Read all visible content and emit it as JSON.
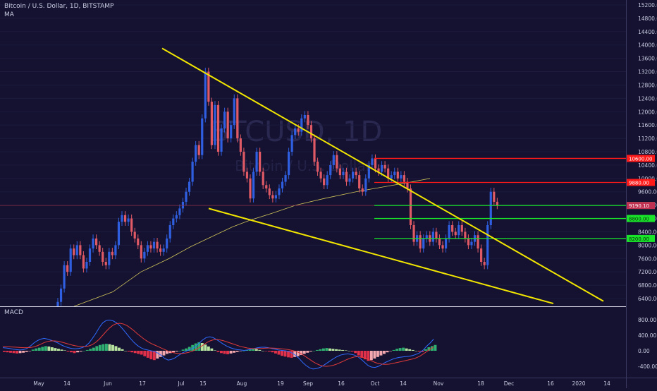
{
  "header": {
    "symbol_line": "Bitcoin / U.S. Dollar, 1D, BITSTAMP",
    "indicator": "MA",
    "watermark_symbol": "BTCUSD, 1D",
    "watermark_name": "Bitcoin / U.S. Dollar"
  },
  "macd_panel": {
    "label": "MACD"
  },
  "colors": {
    "background": "#141230",
    "up": "#2f5fe0",
    "down": "#e05a66",
    "trendline": "#f2e600",
    "resistance": "#ff1a1a",
    "support": "#19e62b",
    "ma": "#cfc25a",
    "macd_line": "#2f6bff",
    "signal_line": "#e03a3a"
  },
  "chart_data": [
    {
      "type": "candlestick",
      "title": "Bitcoin / U.S. Dollar, 1D, BITSTAMP",
      "x_ticks": [
        "May",
        "14",
        "Jun",
        "17",
        "Jul",
        "15",
        "Aug",
        "19",
        "Sep",
        "16",
        "Oct",
        "14",
        "Nov",
        "18",
        "Dec",
        "16",
        "2020",
        "14"
      ],
      "y_ticks": [
        "6400.00",
        "6800.00",
        "7200.00",
        "7600.00",
        "8000.00",
        "8400.00",
        "8800.00",
        "9200.00",
        "9600.00",
        "10000.00",
        "10400.00",
        "10800.00",
        "11200.00",
        "11600.00",
        "12000.00",
        "12400.00",
        "12800.00",
        "13200.00",
        "13600.00",
        "14000.00",
        "14400.00",
        "14800.00",
        "15200.00"
      ],
      "ylim": [
        6150,
        15400
      ],
      "price_levels": [
        {
          "label": "10600.00",
          "value": 10600,
          "kind": "resistance"
        },
        {
          "label": "9880.00",
          "value": 9880,
          "kind": "resistance"
        },
        {
          "label": "9190.00",
          "value": 9190,
          "kind": "support"
        },
        {
          "label": "8800.00",
          "value": 8800,
          "kind": "support"
        },
        {
          "label": "8200.00",
          "value": 8200,
          "kind": "support"
        }
      ],
      "current_price": {
        "label": "9190.10",
        "value": 9190.1
      },
      "trendlines": [
        {
          "from": [
            0,
            13900
          ],
          "to": [
            1,
            6320
          ]
        },
        {
          "from": [
            0,
            9100
          ],
          "to": [
            1,
            6250
          ]
        }
      ],
      "series": [
        {
          "o": 6100,
          "c": 6300
        },
        {
          "o": 6300,
          "c": 6700
        },
        {
          "o": 6700,
          "c": 7400
        },
        {
          "o": 7400,
          "c": 7200
        },
        {
          "o": 7200,
          "c": 7900
        },
        {
          "o": 7900,
          "c": 7700
        },
        {
          "o": 7700,
          "c": 8000
        },
        {
          "o": 8000,
          "c": 7700
        },
        {
          "o": 7700,
          "c": 7300
        },
        {
          "o": 7300,
          "c": 7500
        },
        {
          "o": 7500,
          "c": 7900
        },
        {
          "o": 7900,
          "c": 8200
        },
        {
          "o": 8200,
          "c": 8000
        },
        {
          "o": 8000,
          "c": 7800
        },
        {
          "o": 7800,
          "c": 7500
        },
        {
          "o": 7500,
          "c": 7400
        },
        {
          "o": 7400,
          "c": 7800
        },
        {
          "o": 7800,
          "c": 7700
        },
        {
          "o": 7700,
          "c": 8000
        },
        {
          "o": 8000,
          "c": 8700
        },
        {
          "o": 8700,
          "c": 8900
        },
        {
          "o": 8900,
          "c": 8700
        },
        {
          "o": 8700,
          "c": 8800
        },
        {
          "o": 8800,
          "c": 8400
        },
        {
          "o": 8400,
          "c": 8200
        },
        {
          "o": 8200,
          "c": 8000
        },
        {
          "o": 8000,
          "c": 7600
        },
        {
          "o": 7600,
          "c": 7800
        },
        {
          "o": 7800,
          "c": 8000
        },
        {
          "o": 8000,
          "c": 7900
        },
        {
          "o": 7900,
          "c": 8100
        },
        {
          "o": 8100,
          "c": 7900
        },
        {
          "o": 7900,
          "c": 7800
        },
        {
          "o": 7800,
          "c": 7900
        },
        {
          "o": 7900,
          "c": 8200
        },
        {
          "o": 8200,
          "c": 8600
        },
        {
          "o": 8600,
          "c": 8800
        },
        {
          "o": 8800,
          "c": 8900
        },
        {
          "o": 8900,
          "c": 9100
        },
        {
          "o": 9100,
          "c": 9300
        },
        {
          "o": 9300,
          "c": 9600
        },
        {
          "o": 9600,
          "c": 9900
        },
        {
          "o": 9900,
          "c": 10500
        },
        {
          "o": 10500,
          "c": 11000
        },
        {
          "o": 11000,
          "c": 10700
        },
        {
          "o": 10700,
          "c": 11800
        },
        {
          "o": 11800,
          "c": 13200
        },
        {
          "o": 13200,
          "c": 12300
        },
        {
          "o": 12300,
          "c": 11000
        },
        {
          "o": 11000,
          "c": 12200
        },
        {
          "o": 12200,
          "c": 10800
        },
        {
          "o": 10800,
          "c": 11500
        },
        {
          "o": 11500,
          "c": 12000
        },
        {
          "o": 12000,
          "c": 11200
        },
        {
          "o": 11200,
          "c": 11600
        },
        {
          "o": 11600,
          "c": 12400
        },
        {
          "o": 12400,
          "c": 11200
        },
        {
          "o": 11200,
          "c": 10800
        },
        {
          "o": 10800,
          "c": 10200
        },
        {
          "o": 10200,
          "c": 10000
        },
        {
          "o": 10000,
          "c": 9400
        },
        {
          "o": 9400,
          "c": 10200
        },
        {
          "o": 10200,
          "c": 10800
        },
        {
          "o": 10800,
          "c": 10200
        },
        {
          "o": 10200,
          "c": 9800
        },
        {
          "o": 9800,
          "c": 9700
        },
        {
          "o": 9700,
          "c": 9500
        },
        {
          "o": 9500,
          "c": 9400
        },
        {
          "o": 9400,
          "c": 9500
        },
        {
          "o": 9500,
          "c": 9700
        },
        {
          "o": 9700,
          "c": 9900
        },
        {
          "o": 9900,
          "c": 10100
        },
        {
          "o": 10100,
          "c": 10800
        },
        {
          "o": 10800,
          "c": 11300
        },
        {
          "o": 11300,
          "c": 11500
        },
        {
          "o": 11500,
          "c": 11400
        },
        {
          "o": 11400,
          "c": 11800
        },
        {
          "o": 11800,
          "c": 11900
        },
        {
          "o": 11900,
          "c": 11600
        },
        {
          "o": 11600,
          "c": 11200
        },
        {
          "o": 11200,
          "c": 10500
        },
        {
          "o": 10500,
          "c": 10200
        },
        {
          "o": 10200,
          "c": 10000
        },
        {
          "o": 10000,
          "c": 9800
        },
        {
          "o": 9800,
          "c": 10100
        },
        {
          "o": 10100,
          "c": 10400
        },
        {
          "o": 10400,
          "c": 10700
        },
        {
          "o": 10700,
          "c": 10300
        },
        {
          "o": 10300,
          "c": 10100
        },
        {
          "o": 10100,
          "c": 10200
        },
        {
          "o": 10200,
          "c": 9900
        },
        {
          "o": 9900,
          "c": 10000
        },
        {
          "o": 10000,
          "c": 10200
        },
        {
          "o": 10200,
          "c": 10100
        },
        {
          "o": 10100,
          "c": 9700
        },
        {
          "o": 9700,
          "c": 9600
        },
        {
          "o": 9600,
          "c": 10000
        },
        {
          "o": 10000,
          "c": 10400
        },
        {
          "o": 10400,
          "c": 10600
        },
        {
          "o": 10600,
          "c": 10300
        },
        {
          "o": 10300,
          "c": 10200
        },
        {
          "o": 10200,
          "c": 10400
        },
        {
          "o": 10400,
          "c": 10300
        },
        {
          "o": 10300,
          "c": 10000
        },
        {
          "o": 10000,
          "c": 10100
        },
        {
          "o": 10100,
          "c": 10200
        },
        {
          "o": 10200,
          "c": 10000
        },
        {
          "o": 10000,
          "c": 10100
        },
        {
          "o": 10100,
          "c": 9900
        },
        {
          "o": 9900,
          "c": 9700
        },
        {
          "o": 9700,
          "c": 8600
        },
        {
          "o": 8600,
          "c": 8100
        },
        {
          "o": 8100,
          "c": 8300
        },
        {
          "o": 8300,
          "c": 7900
        },
        {
          "o": 7900,
          "c": 8200
        },
        {
          "o": 8200,
          "c": 8300
        },
        {
          "o": 8300,
          "c": 8100
        },
        {
          "o": 8100,
          "c": 8400
        },
        {
          "o": 8400,
          "c": 8200
        },
        {
          "o": 8200,
          "c": 8000
        },
        {
          "o": 8000,
          "c": 7900
        },
        {
          "o": 7900,
          "c": 8200
        },
        {
          "o": 8200,
          "c": 8600
        },
        {
          "o": 8600,
          "c": 8400
        },
        {
          "o": 8400,
          "c": 8300
        },
        {
          "o": 8300,
          "c": 8600
        },
        {
          "o": 8600,
          "c": 8400
        },
        {
          "o": 8400,
          "c": 8200
        },
        {
          "o": 8200,
          "c": 8000
        },
        {
          "o": 8000,
          "c": 8100
        },
        {
          "o": 8100,
          "c": 8300
        },
        {
          "o": 8300,
          "c": 7900
        },
        {
          "o": 7900,
          "c": 7500
        },
        {
          "o": 7500,
          "c": 7400
        },
        {
          "o": 7400,
          "c": 8600
        },
        {
          "o": 8600,
          "c": 9600
        },
        {
          "o": 9600,
          "c": 9300
        },
        {
          "o": 9300,
          "c": 9200
        }
      ],
      "ma": [
        [
          105,
          6000
        ],
        [
          160,
          6600
        ],
        [
          200,
          7200
        ],
        [
          240,
          7600
        ],
        [
          270,
          7950
        ],
        [
          300,
          8250
        ],
        [
          330,
          8550
        ],
        [
          355,
          8750
        ],
        [
          385,
          8950
        ],
        [
          420,
          9200
        ],
        [
          460,
          9400
        ],
        [
          505,
          9600
        ],
        [
          545,
          9750
        ],
        [
          585,
          9900
        ],
        [
          610,
          10000
        ]
      ]
    },
    {
      "type": "macd",
      "title": "MACD",
      "y_ticks": [
        "800.00",
        "400.00",
        "0.00",
        "-400.00"
      ],
      "ylim": [
        -700,
        1100
      ],
      "histogram": [
        -30,
        -40,
        -50,
        -60,
        -70,
        -60,
        -50,
        -30,
        -10,
        30,
        60,
        80,
        100,
        120,
        110,
        90,
        70,
        50,
        30,
        10,
        -20,
        -40,
        -60,
        -40,
        -20,
        0,
        20,
        50,
        80,
        120,
        150,
        170,
        180,
        170,
        150,
        120,
        80,
        40,
        0,
        -20,
        -40,
        -60,
        -80,
        -100,
        -140,
        -180,
        -220,
        -240,
        -200,
        -160,
        -120,
        -80,
        -60,
        -40,
        -20,
        0,
        30,
        60,
        100,
        150,
        190,
        220,
        200,
        160,
        110,
        60,
        10,
        -30,
        -60,
        -80,
        -90,
        -70,
        -50,
        -30,
        -10,
        0,
        20,
        40,
        50,
        40,
        20,
        0,
        -10,
        -20,
        -40,
        -70,
        -100,
        -130,
        -150,
        -170,
        -180,
        -160,
        -140,
        -110,
        -80,
        -50,
        -20,
        0,
        20,
        40,
        60,
        70,
        60,
        50,
        40,
        30,
        20,
        10,
        0,
        -20,
        -60,
        -120,
        -180,
        -220,
        -260,
        -240,
        -200,
        -160,
        -120,
        -80,
        -40,
        -10,
        20,
        50,
        70,
        80,
        60,
        40,
        20,
        0,
        -20,
        -30,
        40,
        90,
        120,
        150
      ],
      "macd": [
        80,
        70,
        60,
        40,
        30,
        20,
        30,
        60,
        120,
        200,
        260,
        300,
        320,
        300,
        270,
        240,
        200,
        150,
        110,
        80,
        60,
        50,
        60,
        80,
        120,
        200,
        320,
        450,
        600,
        720,
        780,
        790,
        770,
        720,
        640,
        540,
        430,
        320,
        220,
        140,
        80,
        40,
        20,
        0,
        -20,
        -60,
        -120,
        -200,
        -240,
        -220,
        -180,
        -120,
        -60,
        -20,
        20,
        60,
        120,
        200,
        280,
        340,
        360,
        340,
        290,
        230,
        170,
        120,
        80,
        50,
        30,
        20,
        10,
        20,
        40,
        60,
        80,
        90,
        90,
        80,
        60,
        40,
        20,
        10,
        0,
        -20,
        -60,
        -120,
        -200,
        -300,
        -380,
        -440,
        -470,
        -460,
        -430,
        -380,
        -320,
        -260,
        -200,
        -150,
        -110,
        -90,
        -80,
        -90,
        -110,
        -150,
        -220,
        -300,
        -380,
        -420,
        -430,
        -400,
        -350,
        -300,
        -260,
        -220,
        -190,
        -170,
        -160,
        -150,
        -140,
        -120,
        -90,
        -50,
        20,
        120,
        200,
        300
      ],
      "signal": [
        110,
        105,
        100,
        95,
        90,
        85,
        80,
        80,
        85,
        100,
        130,
        170,
        210,
        240,
        255,
        255,
        245,
        225,
        200,
        175,
        150,
        130,
        115,
        108,
        110,
        125,
        160,
        220,
        300,
        400,
        500,
        590,
        660,
        700,
        710,
        690,
        650,
        590,
        520,
        440,
        370,
        300,
        240,
        190,
        150,
        110,
        70,
        30,
        -10,
        -40,
        -60,
        -70,
        -70,
        -60,
        -40,
        -10,
        30,
        80,
        140,
        200,
        250,
        280,
        290,
        280,
        260,
        230,
        200,
        170,
        140,
        110,
        90,
        70,
        60,
        55,
        55,
        60,
        65,
        70,
        70,
        65,
        58,
        50,
        40,
        28,
        10,
        -15,
        -50,
        -100,
        -160,
        -220,
        -280,
        -330,
        -370,
        -395,
        -400,
        -390,
        -370,
        -340,
        -300,
        -260,
        -220,
        -185,
        -160,
        -150,
        -160,
        -185,
        -220,
        -260,
        -300,
        -330,
        -345,
        -350,
        -345,
        -330,
        -310,
        -290,
        -270,
        -250,
        -230,
        -210,
        -180,
        -140,
        -80,
        -20,
        40,
        100
      ]
    }
  ]
}
